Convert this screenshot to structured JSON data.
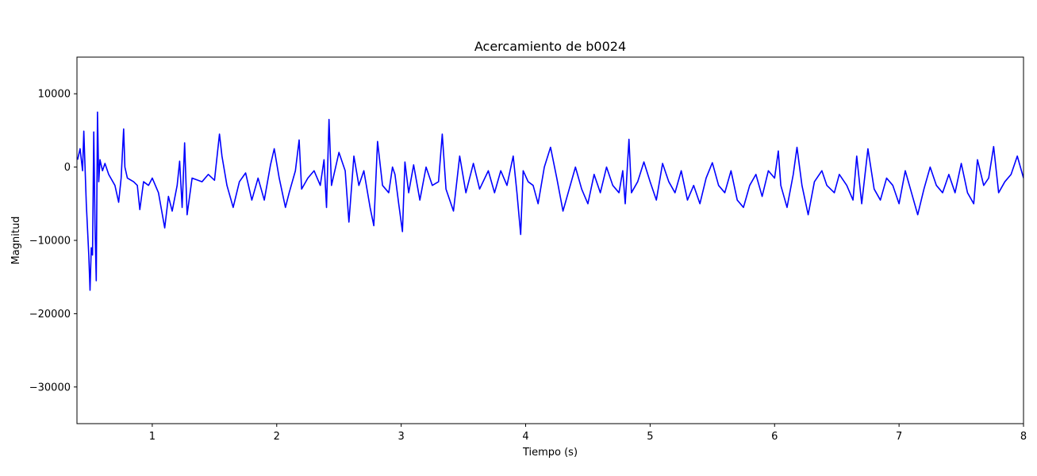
{
  "chart_data": {
    "type": "line",
    "title": "Acercamiento de b0024",
    "xlabel": "Tiempo (s)",
    "ylabel": "Magnitud",
    "xlim": [
      0.395,
      8
    ],
    "ylim": [
      -35000,
      15000
    ],
    "xticks": [
      1,
      2,
      3,
      4,
      5,
      6,
      7,
      8
    ],
    "yticks": [
      {
        "value": -30000,
        "label": "−30000"
      },
      {
        "value": -20000,
        "label": "−20000"
      },
      {
        "value": -10000,
        "label": "−10000"
      },
      0,
      10000
    ],
    "x": [
      0.4,
      0.42,
      0.44,
      0.45,
      0.47,
      0.49,
      0.5,
      0.51,
      0.52,
      0.53,
      0.54,
      0.55,
      0.56,
      0.57,
      0.58,
      0.6,
      0.62,
      0.65,
      0.7,
      0.73,
      0.75,
      0.77,
      0.78,
      0.8,
      0.85,
      0.88,
      0.9,
      0.93,
      0.97,
      1.0,
      1.05,
      1.1,
      1.13,
      1.16,
      1.2,
      1.22,
      1.24,
      1.26,
      1.28,
      1.32,
      1.4,
      1.45,
      1.5,
      1.54,
      1.56,
      1.6,
      1.65,
      1.7,
      1.75,
      1.8,
      1.85,
      1.9,
      1.95,
      1.98,
      2.02,
      2.07,
      2.1,
      2.15,
      2.18,
      2.2,
      2.25,
      2.3,
      2.35,
      2.38,
      2.4,
      2.42,
      2.44,
      2.5,
      2.55,
      2.58,
      2.62,
      2.66,
      2.7,
      2.75,
      2.78,
      2.81,
      2.85,
      2.9,
      2.93,
      2.95,
      2.98,
      3.01,
      3.03,
      3.06,
      3.1,
      3.15,
      3.2,
      3.25,
      3.3,
      3.33,
      3.36,
      3.42,
      3.47,
      3.52,
      3.58,
      3.63,
      3.7,
      3.75,
      3.8,
      3.85,
      3.9,
      3.93,
      3.96,
      3.98,
      4.02,
      4.06,
      4.1,
      4.15,
      4.2,
      4.25,
      4.3,
      4.35,
      4.4,
      4.45,
      4.5,
      4.55,
      4.6,
      4.65,
      4.7,
      4.75,
      4.78,
      4.8,
      4.83,
      4.85,
      4.9,
      4.95,
      5.0,
      5.05,
      5.1,
      5.15,
      5.2,
      5.25,
      5.3,
      5.35,
      5.4,
      5.45,
      5.5,
      5.55,
      5.6,
      5.65,
      5.7,
      5.75,
      5.8,
      5.85,
      5.9,
      5.95,
      6.0,
      6.03,
      6.05,
      6.1,
      6.15,
      6.18,
      6.22,
      6.27,
      6.32,
      6.38,
      6.42,
      6.48,
      6.52,
      6.58,
      6.63,
      6.66,
      6.7,
      6.75,
      6.8,
      6.85,
      6.9,
      6.95,
      7.0,
      7.05,
      7.1,
      7.15,
      7.2,
      7.25,
      7.3,
      7.35,
      7.4,
      7.45,
      7.5,
      7.55,
      7.6,
      7.63,
      7.68,
      7.72,
      7.76,
      7.8,
      7.85,
      7.9,
      7.95,
      8.0
    ],
    "series": [
      {
        "color": "#0000ff",
        "values": [
          1000,
          2500,
          -500,
          4900,
          -5000,
          -12000,
          -16800,
          -11000,
          -12000,
          4800,
          -8000,
          -15500,
          7500,
          -2000,
          1000,
          -500,
          500,
          -1000,
          -2500,
          -4800,
          -1500,
          5200,
          0,
          -1500,
          -2000,
          -2500,
          -5800,
          -2000,
          -2500,
          -1500,
          -3500,
          -8300,
          -4000,
          -6000,
          -2500,
          800,
          -5500,
          3300,
          -6500,
          -1500,
          -2000,
          -1000,
          -1800,
          4500,
          1500,
          -2500,
          -5500,
          -2000,
          -800,
          -4500,
          -1500,
          -4500,
          300,
          2500,
          -1500,
          -5500,
          -3500,
          -500,
          3700,
          -3000,
          -1500,
          -500,
          -2500,
          1000,
          -5500,
          6500,
          -2500,
          2000,
          -500,
          -7500,
          1500,
          -2500,
          -500,
          -5500,
          -8000,
          3500,
          -2500,
          -3500,
          0,
          -1000,
          -5000,
          -8800,
          700,
          -3500,
          300,
          -4500,
          0,
          -2500,
          -2000,
          4500,
          -3000,
          -6000,
          1500,
          -3500,
          500,
          -3000,
          -500,
          -3500,
          -500,
          -2500,
          1500,
          -3500,
          -9200,
          -500,
          -2000,
          -2500,
          -5000,
          0,
          2700,
          -1500,
          -6000,
          -3000,
          0,
          -3000,
          -5000,
          -1000,
          -3500,
          0,
          -2500,
          -3500,
          -500,
          -5000,
          3800,
          -3500,
          -2000,
          700,
          -2000,
          -4500,
          500,
          -2000,
          -3500,
          -500,
          -4500,
          -2500,
          -5000,
          -1500,
          600,
          -2500,
          -3500,
          -500,
          -4500,
          -5500,
          -2500,
          -1000,
          -4000,
          -500,
          -1500,
          2200,
          -2500,
          -5500,
          -1000,
          2700,
          -2500,
          -6500,
          -2000,
          -500,
          -2500,
          -3500,
          -1000,
          -2500,
          -4500,
          1500,
          -5000,
          2500,
          -3000,
          -4500,
          -1500,
          -2500,
          -5000,
          -500,
          -3500,
          -6500,
          -3000,
          0,
          -2500,
          -3500,
          -1000,
          -3500,
          500,
          -3500,
          -5000,
          1000,
          -2500,
          -1500,
          2800,
          -3500,
          -2000,
          -1000,
          1500,
          -1500
        ]
      }
    ]
  }
}
